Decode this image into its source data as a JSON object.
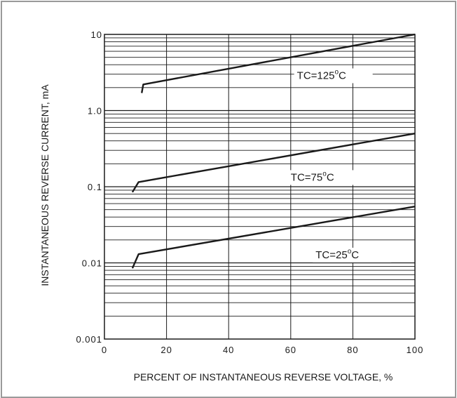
{
  "chart_data": {
    "type": "line",
    "title": "",
    "xlabel": "PERCENT OF INSTANTANEOUS REVERSE VOLTAGE, %",
    "ylabel": "INSTANTANEOUS REVERSE CURRENT, mA",
    "xlim": [
      0,
      100
    ],
    "ylim": [
      0.001,
      10
    ],
    "yscale": "log",
    "grid": true,
    "x_ticks": [
      0,
      20,
      40,
      60,
      80,
      100
    ],
    "x_tick_labels": [
      "0",
      "20",
      "40",
      "60",
      "80",
      "100"
    ],
    "y_ticks": [
      0.001,
      0.01,
      0.1,
      1,
      10
    ],
    "y_tick_labels": [
      "0.001",
      "0.01",
      "0.1",
      "1.0",
      "10"
    ],
    "colors": {
      "line": "#1a1a1a",
      "grid": "#1a1a1a",
      "frame": "#9a9a9a"
    },
    "series": [
      {
        "name": "TC=125°C",
        "label_main": "TC=125",
        "label_unit": "C",
        "label_at": [
          62,
          2.6
        ],
        "x": [
          12,
          12.5,
          100
        ],
        "y": [
          1.7,
          2.2,
          10
        ]
      },
      {
        "name": "TC=75°C",
        "label_main": "TC=75",
        "label_unit": "C",
        "label_at": [
          60,
          0.12
        ],
        "x": [
          9,
          11,
          100
        ],
        "y": [
          0.085,
          0.115,
          0.5
        ]
      },
      {
        "name": "TC=25°C",
        "label_main": "TC=25",
        "label_unit": "C",
        "label_at": [
          68,
          0.0115
        ],
        "x": [
          9,
          11,
          100
        ],
        "y": [
          0.0085,
          0.013,
          0.055
        ]
      }
    ]
  }
}
